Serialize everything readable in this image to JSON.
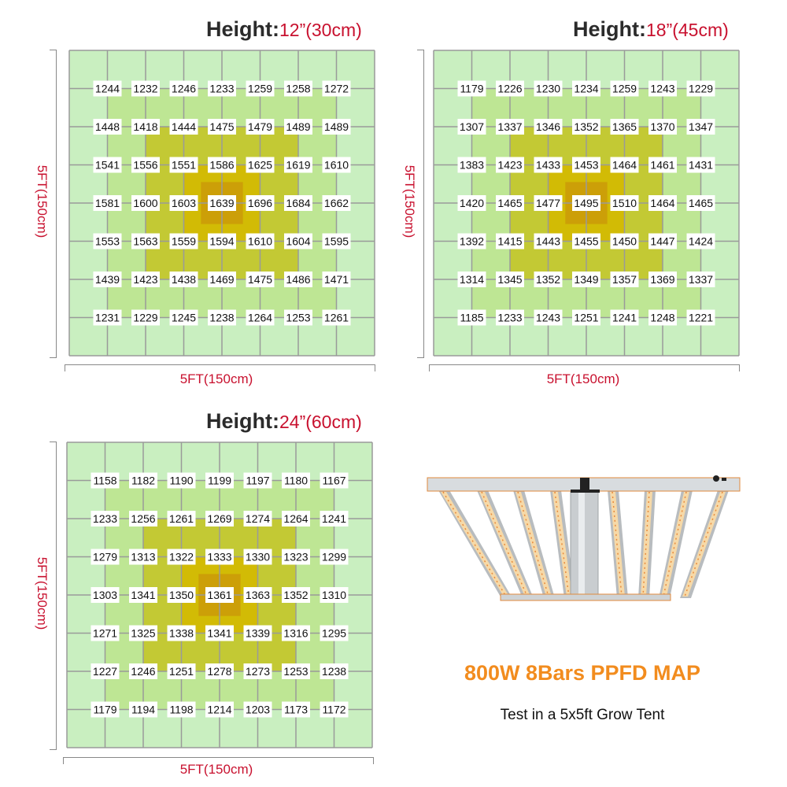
{
  "chart_data": [
    {
      "type": "heatmap",
      "title_label": "Height:",
      "title_value": "12”(30cm)",
      "xlabel": "5FT(150cm)",
      "ylabel": "5FT(150cm)",
      "values": [
        [
          1244,
          1232,
          1246,
          1233,
          1259,
          1258,
          1272
        ],
        [
          1448,
          1418,
          1444,
          1475,
          1479,
          1489,
          1489
        ],
        [
          1541,
          1556,
          1551,
          1586,
          1625,
          1619,
          1610
        ],
        [
          1581,
          1600,
          1603,
          1639,
          1696,
          1684,
          1662
        ],
        [
          1553,
          1563,
          1559,
          1594,
          1610,
          1604,
          1595
        ],
        [
          1439,
          1423,
          1438,
          1469,
          1475,
          1486,
          1471
        ],
        [
          1231,
          1229,
          1245,
          1238,
          1264,
          1253,
          1261
        ]
      ]
    },
    {
      "type": "heatmap",
      "title_label": "Height:",
      "title_value": "18”(45cm)",
      "xlabel": "5FT(150cm)",
      "ylabel": "5FT(150cm)",
      "values": [
        [
          1179,
          1226,
          1230,
          1234,
          1259,
          1243,
          1229
        ],
        [
          1307,
          1337,
          1346,
          1352,
          1365,
          1370,
          1347
        ],
        [
          1383,
          1423,
          1433,
          1453,
          1464,
          1461,
          1431
        ],
        [
          1420,
          1465,
          1477,
          1495,
          1510,
          1464,
          1465
        ],
        [
          1392,
          1415,
          1443,
          1455,
          1450,
          1447,
          1424
        ],
        [
          1314,
          1345,
          1352,
          1349,
          1357,
          1369,
          1337
        ],
        [
          1185,
          1233,
          1243,
          1251,
          1241,
          1248,
          1221
        ]
      ]
    },
    {
      "type": "heatmap",
      "title_label": "Height:",
      "title_value": "24”(60cm)",
      "xlabel": "5FT(150cm)",
      "ylabel": "5FT(150cm)",
      "values": [
        [
          1158,
          1182,
          1190,
          1199,
          1197,
          1180,
          1167
        ],
        [
          1233,
          1256,
          1261,
          1269,
          1274,
          1264,
          1241
        ],
        [
          1279,
          1313,
          1322,
          1333,
          1330,
          1323,
          1299
        ],
        [
          1303,
          1341,
          1350,
          1361,
          1363,
          1352,
          1310
        ],
        [
          1271,
          1325,
          1338,
          1341,
          1339,
          1316,
          1295
        ],
        [
          1227,
          1246,
          1251,
          1278,
          1273,
          1253,
          1238
        ],
        [
          1179,
          1194,
          1198,
          1214,
          1203,
          1173,
          1172
        ]
      ]
    }
  ],
  "colors": {
    "zone_outer": "#c9efc0",
    "zone_ring": "#bee694",
    "zone_inner": "#c3c934",
    "zone_core": "#d2bb05",
    "zone_center": "#cc9f08",
    "grid_line": "#9a9a9a",
    "accent_red": "#c8102e",
    "accent_orange": "#f28c1e"
  },
  "product": {
    "image": "8-bar-led-grow-light-icon",
    "title": "800W 8Bars PPFD MAP",
    "subtitle": "Test in a 5x5ft Grow Tent"
  }
}
